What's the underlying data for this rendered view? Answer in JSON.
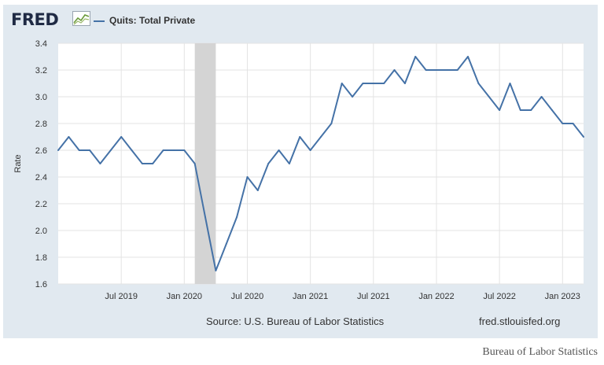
{
  "logo": {
    "text": "FRED",
    "icon": "fred-chart-icon"
  },
  "colors": {
    "line": "#4572a7",
    "recession": "#d4d4d4",
    "grid": "#e3e3e3",
    "panel": "#e1e9f0"
  },
  "footer": {
    "source": "Source: U.S. Bureau of Labor Statistics",
    "url": "fred.stlouisfed.org"
  },
  "caption": "Bureau of Labor Statistics",
  "chart_data": {
    "type": "line",
    "title": "",
    "xlabel": "",
    "ylabel": "Rate",
    "ylim": [
      1.6,
      3.4
    ],
    "yticks": [
      1.6,
      1.8,
      2.0,
      2.2,
      2.4,
      2.6,
      2.8,
      3.0,
      3.2,
      3.4
    ],
    "ytick_labels": [
      "1.6",
      "1.8",
      "2.0",
      "2.2",
      "2.4",
      "2.6",
      "2.8",
      "3.0",
      "3.2",
      "3.4"
    ],
    "xlim": [
      "2019-01",
      "2023-03"
    ],
    "xticks": [
      {
        "date": "2019-07",
        "label": "Jul 2019"
      },
      {
        "date": "2020-01",
        "label": "Jan 2020"
      },
      {
        "date": "2020-07",
        "label": "Jul 2020"
      },
      {
        "date": "2021-01",
        "label": "Jan 2021"
      },
      {
        "date": "2021-07",
        "label": "Jul 2021"
      },
      {
        "date": "2022-01",
        "label": "Jan 2022"
      },
      {
        "date": "2022-07",
        "label": "Jul 2022"
      },
      {
        "date": "2023-01",
        "label": "Jan 2023"
      }
    ],
    "grid": true,
    "legend": "top-left",
    "recession": {
      "start": "2020-02",
      "end": "2020-04"
    },
    "series": [
      {
        "name": "Quits: Total Private",
        "x": [
          "2019-01",
          "2019-02",
          "2019-03",
          "2019-04",
          "2019-05",
          "2019-06",
          "2019-07",
          "2019-08",
          "2019-09",
          "2019-10",
          "2019-11",
          "2019-12",
          "2020-01",
          "2020-02",
          "2020-03",
          "2020-04",
          "2020-05",
          "2020-06",
          "2020-07",
          "2020-08",
          "2020-09",
          "2020-10",
          "2020-11",
          "2020-12",
          "2021-01",
          "2021-02",
          "2021-03",
          "2021-04",
          "2021-05",
          "2021-06",
          "2021-07",
          "2021-08",
          "2021-09",
          "2021-10",
          "2021-11",
          "2021-12",
          "2022-01",
          "2022-02",
          "2022-03",
          "2022-04",
          "2022-05",
          "2022-06",
          "2022-07",
          "2022-08",
          "2022-09",
          "2022-10",
          "2022-11",
          "2022-12",
          "2023-01",
          "2023-02",
          "2023-03"
        ],
        "values": [
          2.6,
          2.7,
          2.6,
          2.6,
          2.5,
          2.6,
          2.7,
          2.6,
          2.5,
          2.5,
          2.6,
          2.6,
          2.6,
          2.5,
          2.1,
          1.7,
          1.9,
          2.1,
          2.4,
          2.3,
          2.5,
          2.6,
          2.5,
          2.7,
          2.6,
          2.7,
          2.8,
          3.1,
          3.0,
          3.1,
          3.1,
          3.1,
          3.2,
          3.1,
          3.3,
          3.2,
          3.2,
          3.2,
          3.2,
          3.3,
          3.1,
          3.0,
          2.9,
          3.1,
          2.9,
          2.9,
          3.0,
          2.9,
          2.8,
          2.8,
          2.7
        ]
      }
    ]
  }
}
